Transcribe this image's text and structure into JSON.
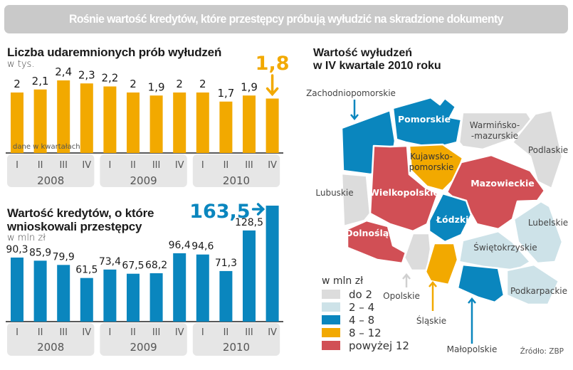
{
  "header": {
    "title": "Rośnie wartość kredytów, które przestępcy próbują wyłudzić na skradzione dokumenty"
  },
  "colors": {
    "orange": "#f2a900",
    "blue": "#0a86be",
    "red": "#d14f55",
    "light_gray": "#dcdcdc",
    "light_blue": "#cde2e8",
    "pill_gray": "#e6e6e6",
    "title_gray": "#c9c9c9"
  },
  "chart_data": [
    {
      "type": "bar",
      "title": "Liczba udaremnionych prób wyłudzeń",
      "subtitle": "w tys.",
      "note": "dane w kwartałach",
      "categories": [
        "I",
        "II",
        "III",
        "IV",
        "I",
        "II",
        "III",
        "IV",
        "I",
        "II",
        "III",
        "IV"
      ],
      "groups": [
        {
          "label": "2008",
          "span": 4
        },
        {
          "label": "2009",
          "span": 4
        },
        {
          "label": "2010",
          "span": 4
        }
      ],
      "values": [
        2,
        2.1,
        2.4,
        2.3,
        2.2,
        2,
        1.9,
        2,
        2,
        1.7,
        1.9,
        1.8
      ],
      "value_labels": [
        "2",
        "2,1",
        "2,4",
        "2,3",
        "2,2",
        "2",
        "1,9",
        "2",
        "2",
        "1,7",
        "1,9",
        "1,8"
      ],
      "highlight": {
        "index": 11,
        "label": "1,8",
        "arrow": "down"
      },
      "color": "#f2a900",
      "ylim": [
        0,
        2.5
      ],
      "grid": false
    },
    {
      "type": "bar",
      "title": "Wartość kredytów, o które wnioskowali przestępcy",
      "title_lines": [
        "Wartość kredytów, o które",
        "wnioskowali przestępcy"
      ],
      "subtitle": "w mln zł",
      "categories": [
        "I",
        "II",
        "III",
        "IV",
        "I",
        "II",
        "III",
        "IV",
        "I",
        "II",
        "III",
        "IV"
      ],
      "groups": [
        {
          "label": "2008",
          "span": 4
        },
        {
          "label": "2009",
          "span": 4
        },
        {
          "label": "2010",
          "span": 4
        }
      ],
      "values": [
        90.3,
        85.9,
        79.9,
        61.5,
        73.4,
        67.5,
        68.2,
        96.4,
        94.6,
        71.3,
        128.5,
        163.5
      ],
      "value_labels": [
        "90,3",
        "85,9",
        "79,9",
        "61,5",
        "73,4",
        "67,5",
        "68,2",
        "96,4",
        "94,6",
        "71,3",
        "128,5",
        "163,5"
      ],
      "highlight": {
        "index": 11,
        "label": "163,5",
        "arrow": "right"
      },
      "color": "#0a86be",
      "ylim": [
        0,
        170
      ],
      "grid": false
    }
  ],
  "map": {
    "title_lines": [
      "Wartość wyłudzeń",
      "w IV kwartale 2010 roku"
    ],
    "legend_title": "w mln zł",
    "legend": [
      {
        "label": "do 2",
        "color": "#dcdcdc"
      },
      {
        "label": "2 – 4",
        "color": "#cde2e8"
      },
      {
        "label": "4 – 8",
        "color": "#0a86be"
      },
      {
        "label": "8 – 12",
        "color": "#f2a900"
      },
      {
        "label": "powyżej 12",
        "color": "#d14f55"
      }
    ],
    "regions": [
      {
        "name": "Zachodniopomorskie",
        "category": "4 – 8"
      },
      {
        "name": "Pomorskie",
        "category": "4 – 8"
      },
      {
        "name": "Warmińsko-mazurskie",
        "label_lines": [
          "Warmińsko-",
          "-mazurskie"
        ],
        "category": "do 2"
      },
      {
        "name": "Podlaskie",
        "category": "do 2"
      },
      {
        "name": "Kujawsko-pomorskie",
        "label_lines": [
          "Kujawsko-",
          "pomorskie"
        ],
        "category": "8 – 12"
      },
      {
        "name": "Lubuskie",
        "category": "do 2"
      },
      {
        "name": "Wielkopolskie",
        "category": "powyżej 12"
      },
      {
        "name": "Mazowieckie",
        "category": "powyżej 12"
      },
      {
        "name": "Łódzkie",
        "category": "4 – 8"
      },
      {
        "name": "Lubelskie",
        "category": "2 – 4"
      },
      {
        "name": "Dolnośląskie",
        "category": "powyżej 12"
      },
      {
        "name": "Opolskie",
        "category": "do 2"
      },
      {
        "name": "Śląskie",
        "category": "8 – 12"
      },
      {
        "name": "Świętokrzyskie",
        "category": "2 – 4"
      },
      {
        "name": "Małopolskie",
        "category": "4 – 8"
      },
      {
        "name": "Podkarpackie",
        "category": "2 – 4"
      }
    ],
    "source": "Źródło: ZBP"
  }
}
